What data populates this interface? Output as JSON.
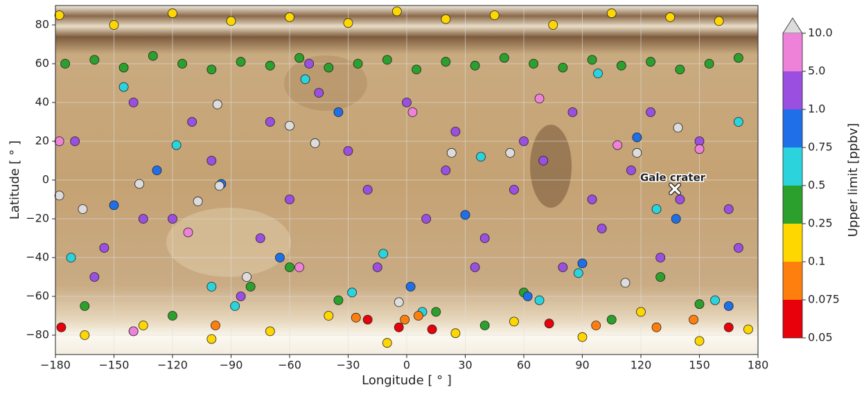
{
  "chart_data": {
    "type": "scatter",
    "x_label": "Longitude [ ° ]",
    "y_label": "Latitude [ ° ]",
    "xlim": [
      -180,
      180
    ],
    "ylim": [
      -90,
      90
    ],
    "xticks": [
      {
        "value": -180,
        "label": "−180"
      },
      {
        "value": -150,
        "label": "−150"
      },
      {
        "value": -120,
        "label": "−120"
      },
      {
        "value": -90,
        "label": "−90"
      },
      {
        "value": -60,
        "label": "−60"
      },
      {
        "value": -30,
        "label": "−30"
      },
      0,
      30,
      60,
      90,
      120,
      150,
      180
    ],
    "yticks": [
      {
        "value": -80,
        "label": "−80"
      },
      {
        "value": -60,
        "label": "−60"
      },
      {
        "value": -40,
        "label": "−40"
      },
      {
        "value": -20,
        "label": "−20"
      },
      0,
      20,
      40,
      60,
      80
    ],
    "grid": true,
    "colorbar": {
      "label": "Upper limit [ppbv]",
      "ticks": [
        0.05,
        0.075,
        0.1,
        0.25,
        0.5,
        0.75,
        {
          "value": 1,
          "label": "1.0"
        },
        {
          "value": 5,
          "label": "5.0"
        },
        {
          "value": 10,
          "label": "10.0"
        }
      ],
      "colors": [
        "#e8000b",
        "#ff7f0e",
        "#ffd700",
        "#2ca02c",
        "#2bd4dc",
        "#1f6fe8",
        "#9b4fe0",
        "#ee82d8"
      ],
      "extend_color": "#dcdcdc"
    },
    "series": [
      {
        "color": "#9b4fe0",
        "x": [
          -170,
          -155,
          -140,
          -120,
          -100,
          -85,
          -70,
          -60,
          -45,
          -30,
          -15,
          0,
          10,
          25,
          40,
          55,
          70,
          85,
          100,
          115,
          130,
          150,
          165,
          -160,
          -110,
          -75,
          -20,
          35,
          60,
          95,
          125,
          170,
          -135,
          -50,
          20,
          80,
          140
        ],
        "values": [
          20,
          -35,
          40,
          -20,
          10,
          -60,
          30,
          -10,
          45,
          15,
          -45,
          40,
          -20,
          25,
          -30,
          -5,
          10,
          35,
          -25,
          5,
          -40,
          20,
          -15,
          -50,
          30,
          -30,
          -5,
          -45,
          20,
          -10,
          35,
          -35,
          -20,
          60,
          5,
          -45,
          -10
        ]
      },
      {
        "color": "#2ca02c",
        "x": [
          -175,
          -160,
          -145,
          -130,
          -115,
          -100,
          -85,
          -70,
          -55,
          -40,
          -25,
          -10,
          5,
          20,
          35,
          50,
          65,
          80,
          95,
          110,
          125,
          140,
          155,
          170,
          -165,
          -120,
          -80,
          -35,
          15,
          60,
          105,
          150,
          -140,
          -60,
          40,
          130
        ],
        "values": [
          60,
          62,
          58,
          64,
          60,
          57,
          61,
          59,
          63,
          58,
          60,
          62,
          57,
          61,
          59,
          63,
          60,
          58,
          62,
          59,
          61,
          57,
          60,
          63,
          -65,
          -70,
          -55,
          -62,
          -68,
          -58,
          -72,
          -64,
          -78,
          -45,
          -75,
          -50
        ]
      },
      {
        "color": "#ffd700",
        "x": [
          -178,
          -150,
          -120,
          -90,
          -60,
          -30,
          -5,
          20,
          45,
          75,
          105,
          135,
          160,
          -165,
          -135,
          -100,
          -70,
          -40,
          -10,
          25,
          55,
          90,
          120,
          150,
          175
        ],
        "values": [
          85,
          80,
          86,
          82,
          84,
          81,
          87,
          83,
          85,
          80,
          86,
          84,
          82,
          -80,
          -75,
          -82,
          -78,
          -70,
          -84,
          -79,
          -73,
          -81,
          -68,
          -83,
          -77
        ]
      },
      {
        "color": "#2bd4dc",
        "x": [
          -172,
          -145,
          -118,
          -88,
          -52,
          -28,
          8,
          38,
          68,
          98,
          128,
          158,
          -100,
          -12,
          88,
          170
        ],
        "values": [
          -40,
          48,
          18,
          -65,
          52,
          -58,
          -68,
          12,
          -62,
          55,
          -15,
          -62,
          -55,
          -38,
          -48,
          30
        ]
      },
      {
        "color": "#1f6fe8",
        "x": [
          -150,
          -128,
          -95,
          -65,
          -35,
          2,
          30,
          62,
          90,
          118,
          138,
          165
        ],
        "values": [
          -13,
          5,
          -2,
          -40,
          35,
          -55,
          -18,
          -60,
          -43,
          22,
          -20,
          -65
        ]
      },
      {
        "color": "#ee82d8",
        "x": [
          -178,
          -112,
          -55,
          3,
          68,
          108,
          150,
          -140
        ],
        "values": [
          20,
          -27,
          -45,
          35,
          42,
          18,
          16,
          -78
        ]
      },
      {
        "color": "#ff7f0e",
        "x": [
          -98,
          -26,
          -1,
          6,
          97,
          128,
          147
        ],
        "values": [
          -75,
          -71,
          -72,
          -70,
          -75,
          -76,
          -72
        ]
      },
      {
        "color": "#e8000b",
        "x": [
          -177,
          -20,
          -4,
          13,
          73,
          165
        ],
        "values": [
          -76,
          -72,
          -76,
          -77,
          -74,
          -76
        ]
      },
      {
        "color": "#dcdcdc",
        "x": [
          -178,
          -166,
          -137,
          -107,
          -96,
          -97,
          -60,
          -47,
          -82,
          -4,
          23,
          53,
          112,
          118,
          139
        ],
        "values": [
          -8,
          -15,
          -2,
          -11,
          -3,
          39,
          28,
          19,
          -50,
          -63,
          14,
          14,
          -53,
          14,
          27
        ]
      }
    ],
    "annotation": {
      "text": "Gale crater",
      "x": 137.4,
      "y": -4.6
    }
  }
}
